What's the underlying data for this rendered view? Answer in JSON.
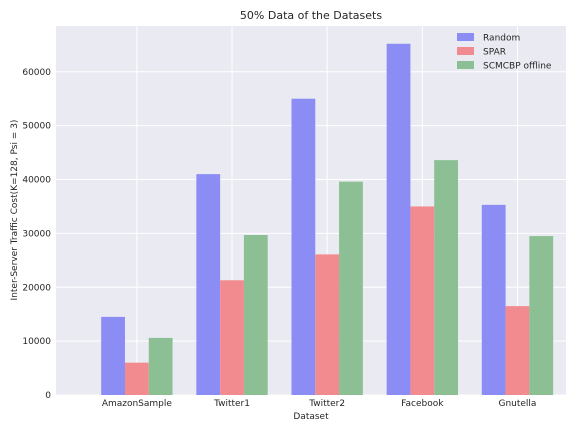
{
  "chart_data": {
    "type": "bar",
    "title": "50% Data of the Datasets",
    "xlabel": "Dataset",
    "ylabel": "Inter-Server Traffic Cost(K=128, Psi = 3)",
    "categories": [
      "AmazonSample",
      "Twitter1",
      "Twitter2",
      "Facebook",
      "Gnutella"
    ],
    "series": [
      {
        "name": "Random",
        "color": "#8c8cf5",
        "values": [
          14500,
          41000,
          55000,
          65200,
          35300
        ]
      },
      {
        "name": "SPAR",
        "color": "#f28b8f",
        "values": [
          6000,
          21300,
          26100,
          35000,
          16500
        ]
      },
      {
        "name": "SCMCBP offline",
        "color": "#8cbf93",
        "values": [
          10600,
          29700,
          39600,
          43600,
          29500
        ]
      }
    ],
    "yticks": [
      0,
      10000,
      20000,
      30000,
      40000,
      50000,
      60000
    ],
    "ylim": [
      0,
      68500
    ],
    "grid": true,
    "legend_position": "top-right",
    "background_color": "#eaeaf2"
  }
}
